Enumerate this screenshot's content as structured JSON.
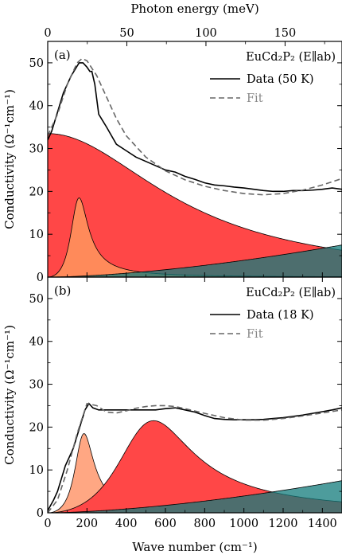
{
  "chart_data": [
    {
      "type": "area",
      "panel_label": "(a)",
      "top_axis": {
        "label": "Photon energy (meV)",
        "ticks": [
          0,
          50,
          100,
          150
        ]
      },
      "xlabel": "",
      "ylabel": "Conductivity (Ω⁻¹cm⁻¹)",
      "xlim": [
        0,
        1500
      ],
      "ylim": [
        0,
        55
      ],
      "yticks": [
        0,
        10,
        20,
        30,
        40,
        50
      ],
      "legend": {
        "title": "EuCd₂P₂ (E∥ab)",
        "position": "top-right",
        "entries": [
          "Data (50 K)",
          "Fit"
        ]
      },
      "series": [
        {
          "name": "Data (50 K)",
          "style": "solid",
          "x": [
            0,
            20,
            40,
            60,
            80,
            100,
            120,
            140,
            160,
            180,
            200,
            215,
            225,
            240,
            260,
            300,
            350,
            400,
            450,
            500,
            550,
            600,
            650,
            700,
            750,
            800,
            850,
            900,
            950,
            1000,
            1050,
            1100,
            1150,
            1200,
            1250,
            1300,
            1350,
            1400,
            1450,
            1500
          ],
          "y": [
            32,
            34,
            37,
            40,
            43,
            45,
            47,
            48.5,
            50,
            50,
            49,
            48,
            48,
            45,
            38,
            35,
            31,
            29.5,
            28,
            27,
            26,
            25,
            24.5,
            23.5,
            22.8,
            22,
            21.5,
            21.3,
            21,
            20.8,
            20.5,
            20.2,
            20,
            20,
            20.2,
            20.2,
            20.3,
            20.5,
            20.8,
            20.5
          ]
        },
        {
          "name": "Fit",
          "style": "dashed",
          "x": [
            0,
            50,
            100,
            150,
            175,
            200,
            250,
            300,
            350,
            400,
            500,
            600,
            700,
            800,
            900,
            1000,
            1100,
            1200,
            1300,
            1400,
            1500
          ],
          "y": [
            33,
            38,
            45,
            50,
            51,
            50.5,
            47,
            42,
            37,
            33,
            28,
            24.8,
            22.7,
            21.2,
            20.2,
            19.5,
            19.2,
            19.5,
            20.3,
            21.5,
            23
          ]
        }
      ],
      "components": [
        {
          "type": "drude",
          "color": "#ff4747",
          "amplitude": 33.5,
          "width": 720
        },
        {
          "type": "lorentz",
          "color": "#ff8a5a",
          "amplitude": 18.5,
          "center": 160,
          "width": 110
        },
        {
          "type": "background",
          "color": "#127b7b",
          "values_at": {
            "x": [
              0,
              1500
            ],
            "y": [
              0,
              7.5
            ]
          }
        }
      ]
    },
    {
      "type": "area",
      "panel_label": "(b)",
      "xlabel": "Wave number (cm⁻¹)",
      "ylabel": "Conductivity (Ω⁻¹cm⁻¹)",
      "xlim": [
        0,
        1500
      ],
      "ylim": [
        0,
        55
      ],
      "xticks": [
        0,
        200,
        400,
        600,
        800,
        1000,
        1200,
        1400
      ],
      "yticks": [
        0,
        10,
        20,
        30,
        40,
        50
      ],
      "legend": {
        "title": "EuCd₂P₂ (E∥ab)",
        "position": "top-right",
        "entries": [
          "Data (18 K)",
          "Fit"
        ]
      },
      "series": [
        {
          "name": "Data (18 K)",
          "style": "solid",
          "x": [
            0,
            30,
            50,
            70,
            90,
            110,
            130,
            150,
            170,
            190,
            210,
            230,
            260,
            300,
            350,
            400,
            450,
            500,
            550,
            600,
            650,
            700,
            750,
            800,
            850,
            900,
            950,
            1000,
            1050,
            1100,
            1150,
            1200,
            1250,
            1300,
            1350,
            1400,
            1450,
            1500
          ],
          "y": [
            0.5,
            3,
            5,
            8,
            11,
            13,
            15,
            18,
            21,
            24,
            25.5,
            24.5,
            24,
            24,
            24,
            24,
            24,
            24,
            24,
            24.3,
            24.5,
            24,
            23.5,
            22.7,
            22,
            21.8,
            21.7,
            21.7,
            21.7,
            21.8,
            22,
            22.2,
            22.5,
            22.8,
            23.2,
            23.6,
            24,
            24.5
          ]
        },
        {
          "name": "Fit",
          "style": "dashed",
          "x": [
            0,
            50,
            100,
            150,
            200,
            250,
            300,
            350,
            400,
            450,
            500,
            550,
            600,
            650,
            700,
            800,
            900,
            1000,
            1100,
            1200,
            1300,
            1400,
            1500
          ],
          "y": [
            0,
            3,
            10,
            18.5,
            25.5,
            25,
            23.5,
            23.3,
            23.8,
            24.4,
            24.8,
            25,
            25,
            24.8,
            24.3,
            23.2,
            22.2,
            21.6,
            21.6,
            22,
            22.6,
            23.3,
            24
          ]
        }
      ],
      "components": [
        {
          "type": "lorentz",
          "color": "#ff8a5a",
          "amplitude": 18.5,
          "center": 185,
          "width": 120
        },
        {
          "type": "lorentz",
          "color": "#ff4747",
          "amplitude": 21.5,
          "center": 540,
          "width": 480
        },
        {
          "type": "background",
          "color": "#127b7b",
          "values_at": {
            "x": [
              0,
              1500
            ],
            "y": [
              0,
              7.5
            ]
          }
        }
      ]
    }
  ]
}
